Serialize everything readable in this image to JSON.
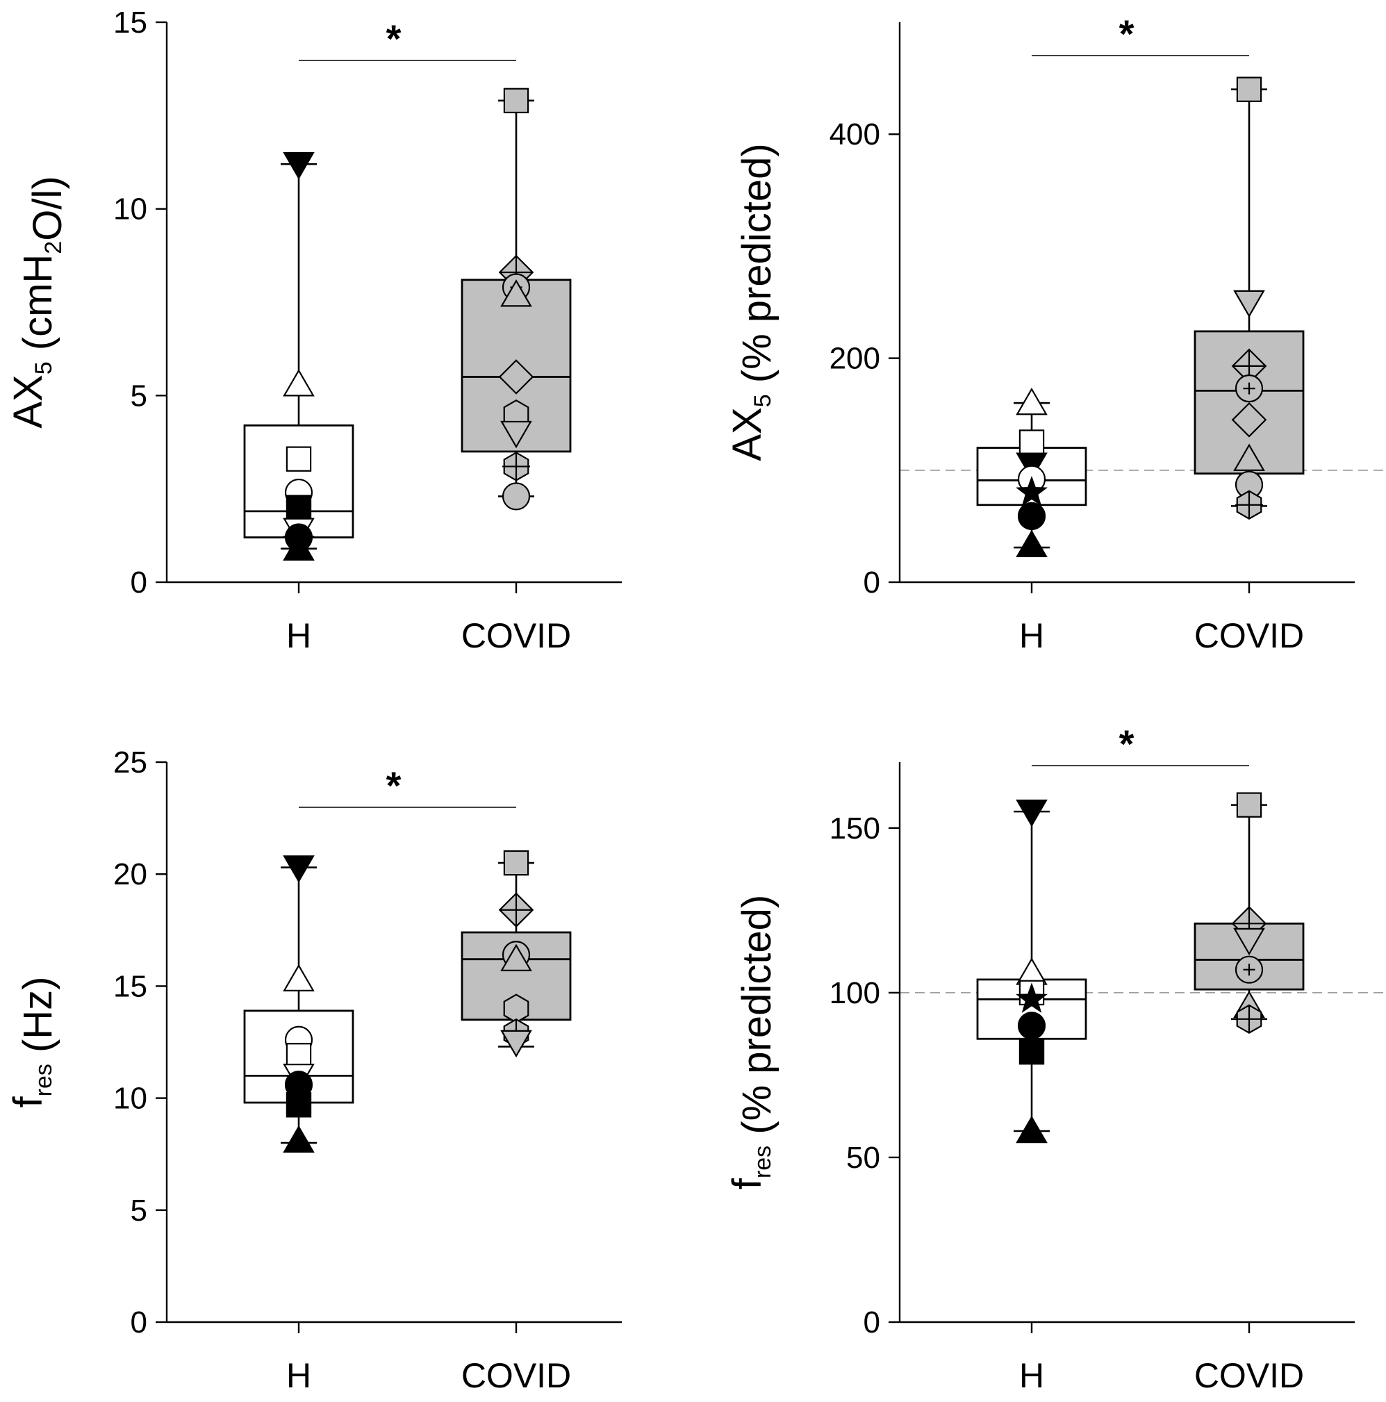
{
  "colors": {
    "H": "#ffffff",
    "COVID": "#c0c0c0",
    "stroke": "#000000",
    "ref_line": "#909090"
  },
  "chart_data": [
    {
      "type": "box",
      "ylabel": {
        "main": "AX",
        "sub": "5",
        "unit_pre": " (cmH",
        "unit_sub": "2",
        "unit_post": "O/l)"
      },
      "ylim": [
        0,
        15
      ],
      "yticks": [
        0,
        5,
        10,
        15
      ],
      "ytick_labels": [
        "0",
        "5",
        "10",
        "15"
      ],
      "categories": [
        "H",
        "COVID"
      ],
      "reference_line": null,
      "significance": "*",
      "series": [
        {
          "name": "H",
          "fill": "white",
          "min": 0.9,
          "q1": 1.2,
          "median": 1.9,
          "q3": 4.2,
          "max": 11.2,
          "points": [
            {
              "marker": "tri-down",
              "fill": "black",
              "value": 11.2
            },
            {
              "marker": "tri-up",
              "fill": "white",
              "value": 5.3
            },
            {
              "marker": "square",
              "fill": "white",
              "value": 3.3
            },
            {
              "marker": "circle",
              "fill": "white",
              "value": 2.4
            },
            {
              "marker": "square",
              "fill": "black",
              "value": 2.0
            },
            {
              "marker": "tri-down",
              "fill": "white",
              "value": 1.4
            },
            {
              "marker": "circle",
              "fill": "black",
              "value": 1.2
            },
            {
              "marker": "star",
              "fill": "black",
              "value": 1.1
            },
            {
              "marker": "tri-up",
              "fill": "black",
              "value": 0.9
            }
          ]
        },
        {
          "name": "COVID",
          "fill": "gray",
          "min": 2.3,
          "q1": 3.5,
          "median": 5.5,
          "q3": 8.1,
          "max": 12.9,
          "points": [
            {
              "marker": "square",
              "fill": "gray",
              "value": 12.9
            },
            {
              "marker": "diamond-plus",
              "fill": "gray",
              "value": 8.3
            },
            {
              "marker": "circle-plus",
              "fill": "gray",
              "value": 7.9
            },
            {
              "marker": "tri-up",
              "fill": "gray",
              "value": 7.7
            },
            {
              "marker": "diamond",
              "fill": "gray",
              "value": 5.5
            },
            {
              "marker": "hexagon",
              "fill": "gray",
              "value": 4.5
            },
            {
              "marker": "tri-down",
              "fill": "gray",
              "value": 4.0
            },
            {
              "marker": "hex-plus",
              "fill": "gray",
              "value": 3.1
            },
            {
              "marker": "circle",
              "fill": "gray",
              "value": 2.3
            }
          ]
        }
      ]
    },
    {
      "type": "box",
      "ylabel": {
        "main": "AX",
        "sub": "5",
        "unit_pre": " (% predicted)",
        "unit_sub": "",
        "unit_post": ""
      },
      "ylim": [
        0,
        500
      ],
      "yticks": [
        0,
        200,
        400
      ],
      "ytick_labels": [
        "0",
        "200",
        "400"
      ],
      "categories": [
        "H",
        "COVID"
      ],
      "reference_line": 100,
      "significance": "*",
      "series": [
        {
          "name": "H",
          "fill": "white",
          "min": 31,
          "q1": 69,
          "median": 91,
          "q3": 120,
          "max": 160,
          "points": [
            {
              "marker": "tri-up",
              "fill": "white",
              "value": 160
            },
            {
              "marker": "square",
              "fill": "white",
              "value": 125
            },
            {
              "marker": "tri-down",
              "fill": "black",
              "value": 105
            },
            {
              "marker": "circle",
              "fill": "white",
              "value": 92
            },
            {
              "marker": "star",
              "fill": "black",
              "value": 80
            },
            {
              "marker": "circle",
              "fill": "black",
              "value": 59
            },
            {
              "marker": "tri-up",
              "fill": "black",
              "value": 33
            }
          ]
        },
        {
          "name": "COVID",
          "fill": "gray",
          "min": 68,
          "q1": 97,
          "median": 171,
          "q3": 224,
          "max": 440,
          "points": [
            {
              "marker": "square",
              "fill": "gray",
              "value": 440
            },
            {
              "marker": "tri-down",
              "fill": "gray",
              "value": 250
            },
            {
              "marker": "diamond-plus",
              "fill": "gray",
              "value": 193
            },
            {
              "marker": "circle-plus",
              "fill": "gray",
              "value": 173
            },
            {
              "marker": "diamond",
              "fill": "gray",
              "value": 145
            },
            {
              "marker": "tri-up",
              "fill": "gray",
              "value": 110
            },
            {
              "marker": "circle",
              "fill": "gray",
              "value": 87
            },
            {
              "marker": "hex-plus",
              "fill": "gray",
              "value": 69
            }
          ]
        }
      ]
    },
    {
      "type": "box",
      "ylabel": {
        "main": "f",
        "sub": "res",
        "unit_pre": " (Hz)",
        "unit_sub": "",
        "unit_post": ""
      },
      "ylim": [
        0,
        25
      ],
      "yticks": [
        0,
        5,
        10,
        15,
        20,
        25
      ],
      "ytick_labels": [
        "0",
        "5",
        "10",
        "15",
        "20",
        "25"
      ],
      "categories": [
        "H",
        "COVID"
      ],
      "reference_line": null,
      "significance": "*",
      "series": [
        {
          "name": "H",
          "fill": "white",
          "min": 8.0,
          "q1": 9.8,
          "median": 11.0,
          "q3": 13.9,
          "max": 20.3,
          "points": [
            {
              "marker": "tri-down",
              "fill": "black",
              "value": 20.3
            },
            {
              "marker": "tri-up",
              "fill": "white",
              "value": 15.3
            },
            {
              "marker": "circle",
              "fill": "white",
              "value": 12.6
            },
            {
              "marker": "square",
              "fill": "white",
              "value": 11.9
            },
            {
              "marker": "tri-down",
              "fill": "white",
              "value": 11.0
            },
            {
              "marker": "circle",
              "fill": "black",
              "value": 10.6
            },
            {
              "marker": "square",
              "fill": "black",
              "value": 9.7
            },
            {
              "marker": "tri-up",
              "fill": "black",
              "value": 8.1
            }
          ]
        },
        {
          "name": "COVID",
          "fill": "gray",
          "min": 12.3,
          "q1": 13.5,
          "median": 16.2,
          "q3": 17.4,
          "max": 20.5,
          "points": [
            {
              "marker": "square",
              "fill": "gray",
              "value": 20.5
            },
            {
              "marker": "diamond-plus",
              "fill": "gray",
              "value": 18.4
            },
            {
              "marker": "circle-plus",
              "fill": "gray",
              "value": 16.4
            },
            {
              "marker": "tri-up",
              "fill": "gray",
              "value": 16.2
            },
            {
              "marker": "hexagon",
              "fill": "gray",
              "value": 14.0
            },
            {
              "marker": "hex-plus",
              "fill": "gray",
              "value": 12.9
            },
            {
              "marker": "tri-down",
              "fill": "gray",
              "value": 12.5
            }
          ]
        }
      ]
    },
    {
      "type": "box",
      "ylabel": {
        "main": "f",
        "sub": "res",
        "unit_pre": " (% predicted)",
        "unit_sub": "",
        "unit_post": ""
      },
      "ylim": [
        0,
        170
      ],
      "yticks": [
        0,
        50,
        100,
        150
      ],
      "ytick_labels": [
        "0",
        "50",
        "100",
        "150"
      ],
      "categories": [
        "H",
        "COVID"
      ],
      "reference_line": 100,
      "significance": "*",
      "series": [
        {
          "name": "H",
          "fill": "white",
          "min": 58,
          "q1": 86,
          "median": 98,
          "q3": 104,
          "max": 155,
          "points": [
            {
              "marker": "tri-down",
              "fill": "black",
              "value": 155
            },
            {
              "marker": "tri-up",
              "fill": "white",
              "value": 106
            },
            {
              "marker": "square",
              "fill": "white",
              "value": 100
            },
            {
              "marker": "star",
              "fill": "black",
              "value": 98
            },
            {
              "marker": "circle",
              "fill": "black",
              "value": 90
            },
            {
              "marker": "square",
              "fill": "black",
              "value": 82
            },
            {
              "marker": "tri-up",
              "fill": "black",
              "value": 58
            }
          ]
        },
        {
          "name": "COVID",
          "fill": "gray",
          "min": 92,
          "q1": 101,
          "median": 110,
          "q3": 121,
          "max": 157,
          "points": [
            {
              "marker": "square",
              "fill": "gray",
              "value": 157
            },
            {
              "marker": "diamond-plus",
              "fill": "gray",
              "value": 121
            },
            {
              "marker": "tri-down",
              "fill": "gray",
              "value": 116
            },
            {
              "marker": "circle-plus",
              "fill": "gray",
              "value": 107
            },
            {
              "marker": "tri-up",
              "fill": "gray",
              "value": 96
            },
            {
              "marker": "hex-plus",
              "fill": "gray",
              "value": 92
            }
          ]
        }
      ]
    }
  ]
}
